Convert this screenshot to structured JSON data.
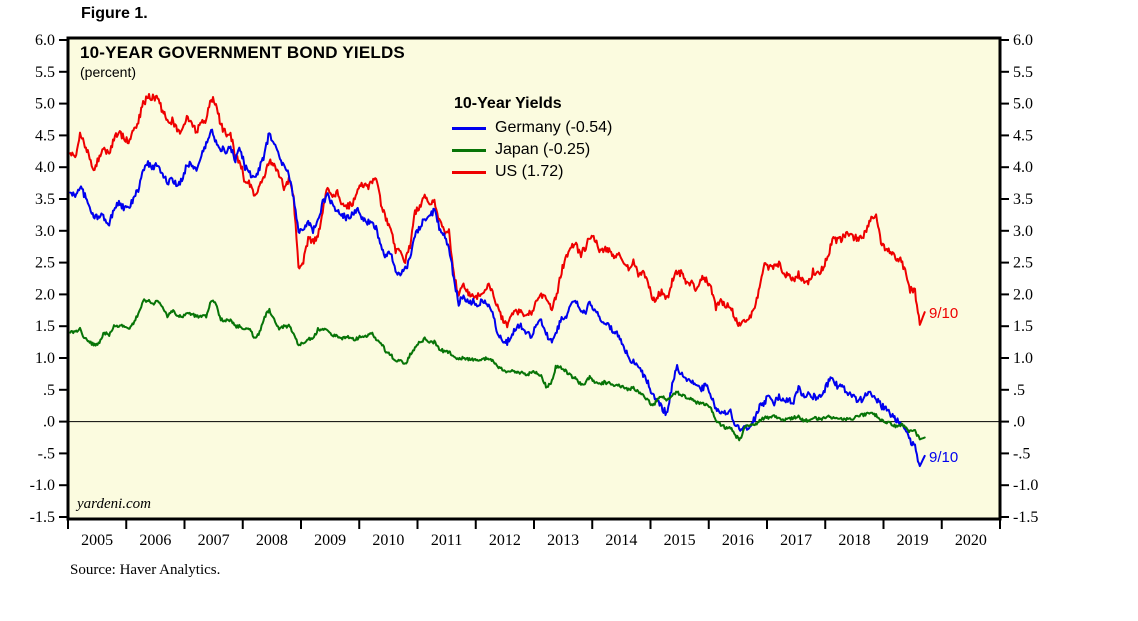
{
  "figure": {
    "label": "Figure 1."
  },
  "chart": {
    "title": "10-YEAR GOVERNMENT BOND YIELDS",
    "subtitle": "(percent)",
    "watermark": "yardeni.com",
    "source": "Source: Haver Analytics.",
    "legend_title": "10-Year Yields",
    "colors": {
      "plot_bg": "#FBFBDF",
      "border": "#000000",
      "zero_line": "#000000"
    }
  },
  "chart_data": {
    "type": "line",
    "title": "10-YEAR GOVERNMENT BOND YIELDS",
    "ylabel": "percent",
    "ylim": [
      -1.5,
      6.0
    ],
    "xlim": [
      2005,
      2021
    ],
    "grid": false,
    "legend_position": "top-center-inside",
    "y_ticks": [
      6.0,
      5.5,
      5.0,
      4.5,
      4.0,
      3.5,
      3.0,
      2.5,
      2.0,
      1.5,
      1.0,
      0.5,
      0.0,
      -0.5,
      -1.0,
      -1.5
    ],
    "y_tick_labels": [
      "6.0",
      "5.5",
      "5.0",
      "4.5",
      "4.0",
      "3.5",
      "3.0",
      "2.5",
      "2.0",
      "1.5",
      "1.0",
      ".5",
      ".0",
      "-.5",
      "-1.0",
      "-1.5"
    ],
    "x_tick_years": [
      2005,
      2006,
      2007,
      2008,
      2009,
      2010,
      2011,
      2012,
      2013,
      2014,
      2015,
      2016,
      2017,
      2018,
      2019,
      2020,
      2021
    ],
    "x_labels": [
      "2005",
      "2006",
      "2007",
      "2008",
      "2009",
      "2010",
      "2011",
      "2012",
      "2013",
      "2014",
      "2015",
      "2016",
      "2017",
      "2018",
      "2019",
      "2020"
    ],
    "frequency": "monthly",
    "x_start": 2005.04,
    "end_date_label": "9/10",
    "series": [
      {
        "name": "Germany",
        "legend_label": "Germany (-0.54)",
        "last_value": -0.54,
        "annotation": "9/10",
        "color": "#0000EE",
        "values": [
          3.6,
          3.55,
          3.7,
          3.55,
          3.35,
          3.2,
          3.25,
          3.2,
          3.1,
          3.35,
          3.45,
          3.35,
          3.35,
          3.5,
          3.65,
          3.95,
          4.05,
          4.0,
          4.05,
          3.9,
          3.75,
          3.8,
          3.7,
          3.8,
          4.05,
          4.05,
          3.95,
          4.2,
          4.35,
          4.6,
          4.4,
          4.3,
          4.25,
          4.3,
          4.1,
          4.3,
          4.0,
          3.9,
          3.8,
          4.0,
          4.2,
          4.55,
          4.35,
          4.2,
          4.0,
          3.9,
          3.5,
          3.0,
          3.05,
          3.15,
          3.0,
          3.15,
          3.45,
          3.55,
          3.4,
          3.3,
          3.25,
          3.2,
          3.25,
          3.35,
          3.2,
          3.15,
          3.1,
          3.05,
          2.75,
          2.6,
          2.65,
          2.35,
          2.3,
          2.4,
          2.55,
          2.95,
          3.05,
          3.2,
          3.2,
          3.35,
          3.05,
          2.95,
          2.75,
          2.25,
          1.85,
          2.0,
          1.85,
          1.9,
          1.85,
          1.9,
          1.85,
          1.7,
          1.4,
          1.3,
          1.25,
          1.35,
          1.5,
          1.5,
          1.4,
          1.35,
          1.55,
          1.6,
          1.4,
          1.25,
          1.35,
          1.6,
          1.65,
          1.8,
          1.9,
          1.75,
          1.7,
          1.9,
          1.75,
          1.65,
          1.55,
          1.5,
          1.4,
          1.35,
          1.2,
          1.0,
          0.95,
          0.85,
          0.75,
          0.6,
          0.4,
          0.3,
          0.2,
          0.12,
          0.6,
          0.85,
          0.75,
          0.65,
          0.65,
          0.55,
          0.5,
          0.6,
          0.4,
          0.2,
          0.15,
          0.15,
          0.15,
          -0.05,
          -0.1,
          -0.1,
          -0.05,
          0.05,
          0.25,
          0.3,
          0.42,
          0.3,
          0.4,
          0.3,
          0.35,
          0.3,
          0.55,
          0.4,
          0.42,
          0.4,
          0.37,
          0.42,
          0.6,
          0.7,
          0.55,
          0.55,
          0.45,
          0.4,
          0.35,
          0.35,
          0.45,
          0.45,
          0.37,
          0.25,
          0.2,
          0.12,
          0.02,
          0.0,
          -0.1,
          -0.3,
          -0.4,
          -0.7,
          -0.54
        ]
      },
      {
        "name": "Japan",
        "legend_label": "Japan (-0.25)",
        "last_value": -0.25,
        "annotation": "",
        "color": "#077407",
        "values": [
          1.4,
          1.4,
          1.45,
          1.3,
          1.25,
          1.2,
          1.25,
          1.4,
          1.35,
          1.5,
          1.5,
          1.5,
          1.45,
          1.55,
          1.7,
          1.9,
          1.9,
          1.85,
          1.9,
          1.8,
          1.65,
          1.75,
          1.65,
          1.65,
          1.7,
          1.7,
          1.65,
          1.65,
          1.65,
          1.9,
          1.85,
          1.6,
          1.6,
          1.6,
          1.5,
          1.5,
          1.45,
          1.45,
          1.3,
          1.4,
          1.65,
          1.75,
          1.6,
          1.45,
          1.5,
          1.5,
          1.4,
          1.2,
          1.25,
          1.3,
          1.3,
          1.45,
          1.45,
          1.45,
          1.35,
          1.35,
          1.3,
          1.35,
          1.3,
          1.3,
          1.35,
          1.35,
          1.4,
          1.3,
          1.25,
          1.1,
          1.05,
          0.95,
          0.95,
          0.9,
          1.05,
          1.15,
          1.25,
          1.3,
          1.25,
          1.25,
          1.15,
          1.1,
          1.1,
          1.0,
          1.0,
          1.0,
          0.98,
          0.98,
          0.95,
          0.98,
          1.0,
          0.95,
          0.85,
          0.82,
          0.78,
          0.8,
          0.78,
          0.77,
          0.72,
          0.78,
          0.78,
          0.72,
          0.56,
          0.58,
          0.86,
          0.85,
          0.8,
          0.72,
          0.68,
          0.6,
          0.6,
          0.7,
          0.62,
          0.58,
          0.62,
          0.6,
          0.58,
          0.57,
          0.54,
          0.5,
          0.53,
          0.47,
          0.42,
          0.33,
          0.25,
          0.35,
          0.4,
          0.33,
          0.4,
          0.46,
          0.42,
          0.38,
          0.35,
          0.3,
          0.3,
          0.27,
          0.22,
          0.0,
          -0.05,
          -0.1,
          -0.1,
          -0.23,
          -0.28,
          -0.07,
          -0.07,
          -0.06,
          0.02,
          0.06,
          0.07,
          0.08,
          0.07,
          0.02,
          0.04,
          0.06,
          0.08,
          0.02,
          0.02,
          0.06,
          0.04,
          0.05,
          0.08,
          0.06,
          0.04,
          0.04,
          0.04,
          0.04,
          0.1,
          0.1,
          0.12,
          0.13,
          0.1,
          0.03,
          0.0,
          -0.03,
          -0.07,
          -0.05,
          -0.07,
          -0.16,
          -0.15,
          -0.28,
          -0.25
        ]
      },
      {
        "name": "US",
        "legend_label": "US (1.72)",
        "last_value": 1.72,
        "annotation": "9/10",
        "color": "#EE0000",
        "values": [
          4.22,
          4.17,
          4.5,
          4.34,
          4.14,
          3.94,
          4.18,
          4.26,
          4.2,
          4.46,
          4.54,
          4.47,
          4.42,
          4.57,
          4.72,
          4.99,
          5.11,
          5.11,
          5.09,
          4.88,
          4.72,
          4.73,
          4.6,
          4.56,
          4.76,
          4.72,
          4.56,
          4.69,
          4.75,
          5.1,
          5.0,
          4.67,
          4.52,
          4.53,
          4.15,
          4.1,
          3.74,
          3.74,
          3.51,
          3.68,
          3.88,
          4.1,
          4.01,
          3.89,
          3.69,
          3.81,
          3.53,
          2.42,
          2.52,
          2.87,
          2.82,
          2.93,
          3.29,
          3.72,
          3.56,
          3.59,
          3.4,
          3.39,
          3.4,
          3.59,
          3.73,
          3.69,
          3.73,
          3.85,
          3.42,
          3.2,
          3.01,
          2.7,
          2.65,
          2.54,
          2.76,
          3.29,
          3.39,
          3.58,
          3.41,
          3.46,
          3.17,
          3.0,
          3.0,
          2.3,
          1.98,
          2.15,
          2.01,
          1.98,
          1.97,
          1.97,
          2.17,
          2.05,
          1.8,
          1.62,
          1.53,
          1.68,
          1.72,
          1.75,
          1.65,
          1.72,
          1.91,
          1.98,
          1.96,
          1.76,
          1.93,
          2.3,
          2.58,
          2.74,
          2.81,
          2.62,
          2.72,
          2.9,
          2.86,
          2.71,
          2.72,
          2.71,
          2.56,
          2.6,
          2.54,
          2.42,
          2.53,
          2.3,
          2.33,
          2.21,
          1.88,
          1.98,
          2.04,
          1.94,
          2.2,
          2.36,
          2.32,
          2.17,
          2.17,
          2.07,
          2.26,
          2.24,
          2.09,
          1.78,
          1.89,
          1.81,
          1.81,
          1.64,
          1.5,
          1.56,
          1.63,
          1.76,
          2.14,
          2.49,
          2.43,
          2.42,
          2.48,
          2.3,
          2.3,
          2.19,
          2.32,
          2.21,
          2.2,
          2.36,
          2.35,
          2.4,
          2.58,
          2.86,
          2.84,
          2.87,
          2.98,
          2.91,
          2.89,
          2.89,
          3.0,
          3.18,
          3.22,
          2.83,
          2.71,
          2.68,
          2.57,
          2.53,
          2.4,
          2.07,
          2.06,
          1.52,
          1.72
        ]
      }
    ]
  }
}
